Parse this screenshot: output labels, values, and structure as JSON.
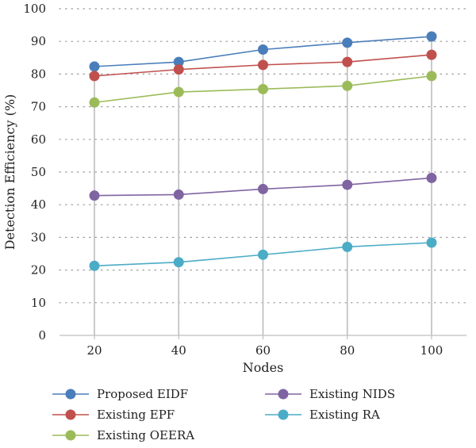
{
  "chart_data": {
    "type": "line",
    "title": "",
    "xlabel": "Nodes",
    "ylabel": "Detection Efficiency (%)",
    "x": [
      20,
      40,
      60,
      80,
      100
    ],
    "ylim": [
      0,
      100
    ],
    "yticks": [
      0,
      10,
      20,
      30,
      40,
      50,
      60,
      70,
      80,
      90,
      100
    ],
    "grid": "horizontal dotted",
    "drop_lines": true,
    "legend_position": "bottom",
    "series": [
      {
        "name": "Proposed EIDF",
        "color": "#4A7EBB",
        "values": [
          82.3,
          83.7,
          87.5,
          89.6,
          91.5
        ]
      },
      {
        "name": "Existing EPF",
        "color": "#C0504D",
        "values": [
          79.4,
          81.4,
          82.8,
          83.7,
          85.9
        ]
      },
      {
        "name": "Existing OEERA",
        "color": "#9BBB59",
        "values": [
          71.3,
          74.5,
          75.4,
          76.4,
          79.4
        ]
      },
      {
        "name": "Existing NIDS",
        "color": "#8064A2",
        "values": [
          42.8,
          43.1,
          44.8,
          46.1,
          48.2
        ]
      },
      {
        "name": "Existing RA",
        "color": "#4BACC6",
        "values": [
          21.3,
          22.4,
          24.7,
          27.1,
          28.4
        ]
      }
    ]
  }
}
